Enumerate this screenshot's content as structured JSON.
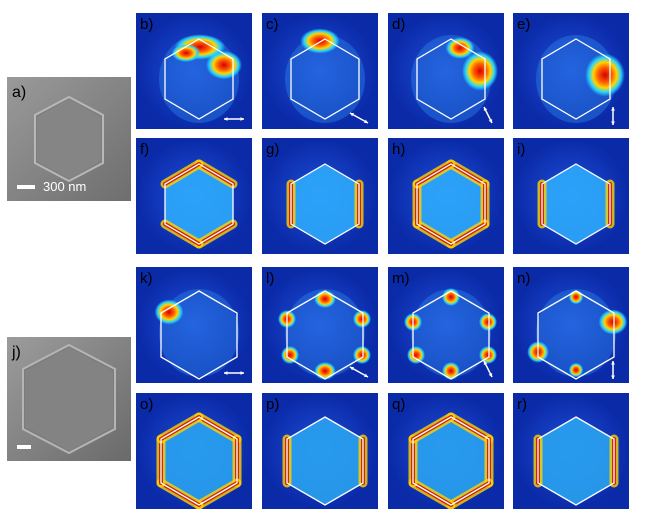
{
  "panels": {
    "a": {
      "label": "a)",
      "scale_text": "300 nm"
    },
    "b": {
      "label": "b)"
    },
    "c": {
      "label": "c)"
    },
    "d": {
      "label": "d)"
    },
    "e": {
      "label": "e)"
    },
    "f": {
      "label": "f)"
    },
    "g": {
      "label": "g)"
    },
    "h": {
      "label": "h)"
    },
    "i": {
      "label": "i)"
    },
    "j": {
      "label": "j)"
    },
    "k": {
      "label": "k)"
    },
    "l": {
      "label": "l)"
    },
    "m": {
      "label": "m)"
    },
    "n": {
      "label": "n)"
    },
    "o": {
      "label": "o)"
    },
    "p": {
      "label": "p)"
    },
    "q": {
      "label": "q)"
    },
    "r": {
      "label": "r)"
    }
  },
  "colors": {
    "background": "#0a2aa8",
    "hot": "#d40000",
    "warm": "#ffd400",
    "mid": "#27d4ff",
    "outline": "#ffffff"
  },
  "polarization_icons": [
    "horizontal-arrow-icon",
    "diagonal-down-arrow-icon",
    "diagonal-up-arrow-icon",
    "vertical-arrow-icon"
  ]
}
